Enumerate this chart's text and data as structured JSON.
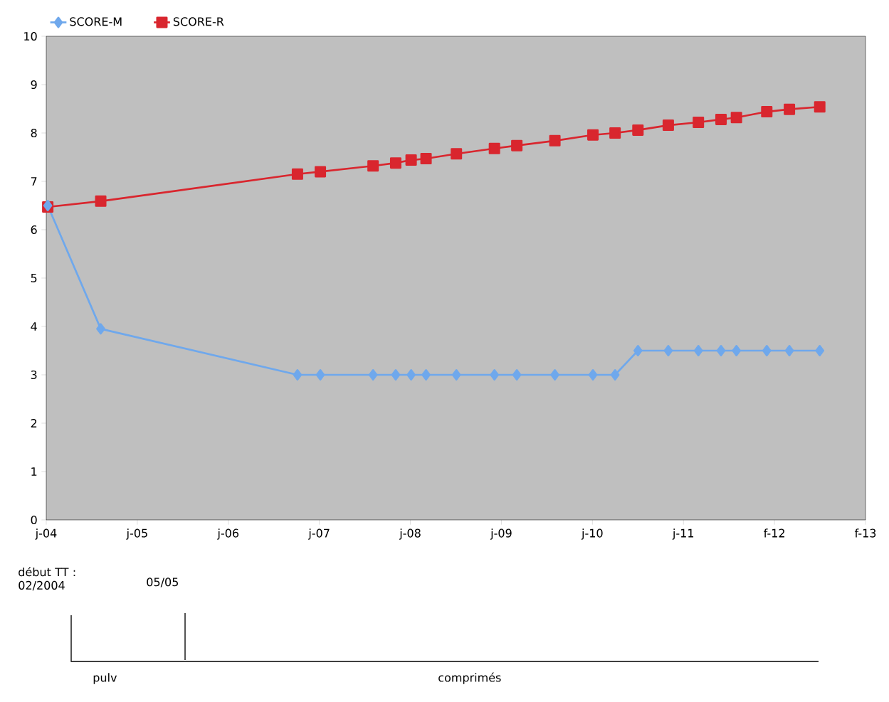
{
  "chart_data": {
    "type": "line",
    "x": [
      "2004-02",
      "2004-09",
      "2006-11",
      "2007-02",
      "2007-09",
      "2007-12",
      "2008-02",
      "2008-04",
      "2008-08",
      "2009-01",
      "2009-04",
      "2009-09",
      "2010-02",
      "2010-05",
      "2010-08",
      "2010-12",
      "2011-04",
      "2011-07",
      "2011-09",
      "2012-01",
      "2012-04",
      "2012-08"
    ],
    "series": [
      {
        "name": "SCORE-M",
        "color": "#6fa8ec",
        "marker": "diamond",
        "values": [
          6.5,
          3.95,
          3,
          3,
          3,
          3,
          3,
          3,
          3,
          3,
          3,
          3,
          3,
          3,
          3.5,
          3.5,
          3.5,
          3.5,
          3.5,
          3.5,
          3.5,
          3.5
        ]
      },
      {
        "name": "SCORE-R",
        "color": "#d9262e",
        "marker": "square",
        "values": [
          6.47,
          6.59,
          7.15,
          7.2,
          7.32,
          7.38,
          7.44,
          7.47,
          7.57,
          7.68,
          7.74,
          7.84,
          7.96,
          8.0,
          8.06,
          8.16,
          8.22,
          8.28,
          8.32,
          8.44,
          8.49,
          8.54
        ]
      }
    ],
    "xlim": [
      "2004-01-26",
      "2013-02-01"
    ],
    "xticks": [
      {
        "value": "2004-01-26",
        "label": "j-04"
      },
      {
        "value": "2005-01-26",
        "label": "j-05"
      },
      {
        "value": "2006-01-27",
        "label": "j-06"
      },
      {
        "value": "2007-01-28",
        "label": "j-07"
      },
      {
        "value": "2008-01-29",
        "label": "j-08"
      },
      {
        "value": "2009-01-29",
        "label": "j-09"
      },
      {
        "value": "2010-01-30",
        "label": "j-10"
      },
      {
        "value": "2011-01-31",
        "label": "j-11"
      },
      {
        "value": "2012-02-01",
        "label": "f-12"
      },
      {
        "value": "2013-02-01",
        "label": "f-13"
      }
    ],
    "ylim": [
      0,
      10
    ],
    "yticks": [
      0,
      1,
      2,
      3,
      4,
      5,
      6,
      7,
      8,
      9,
      10
    ],
    "grid": false,
    "legend": "top",
    "annotations": [
      "début TT : 02/2004",
      "05/05",
      "pulv",
      "comprimés"
    ]
  }
}
